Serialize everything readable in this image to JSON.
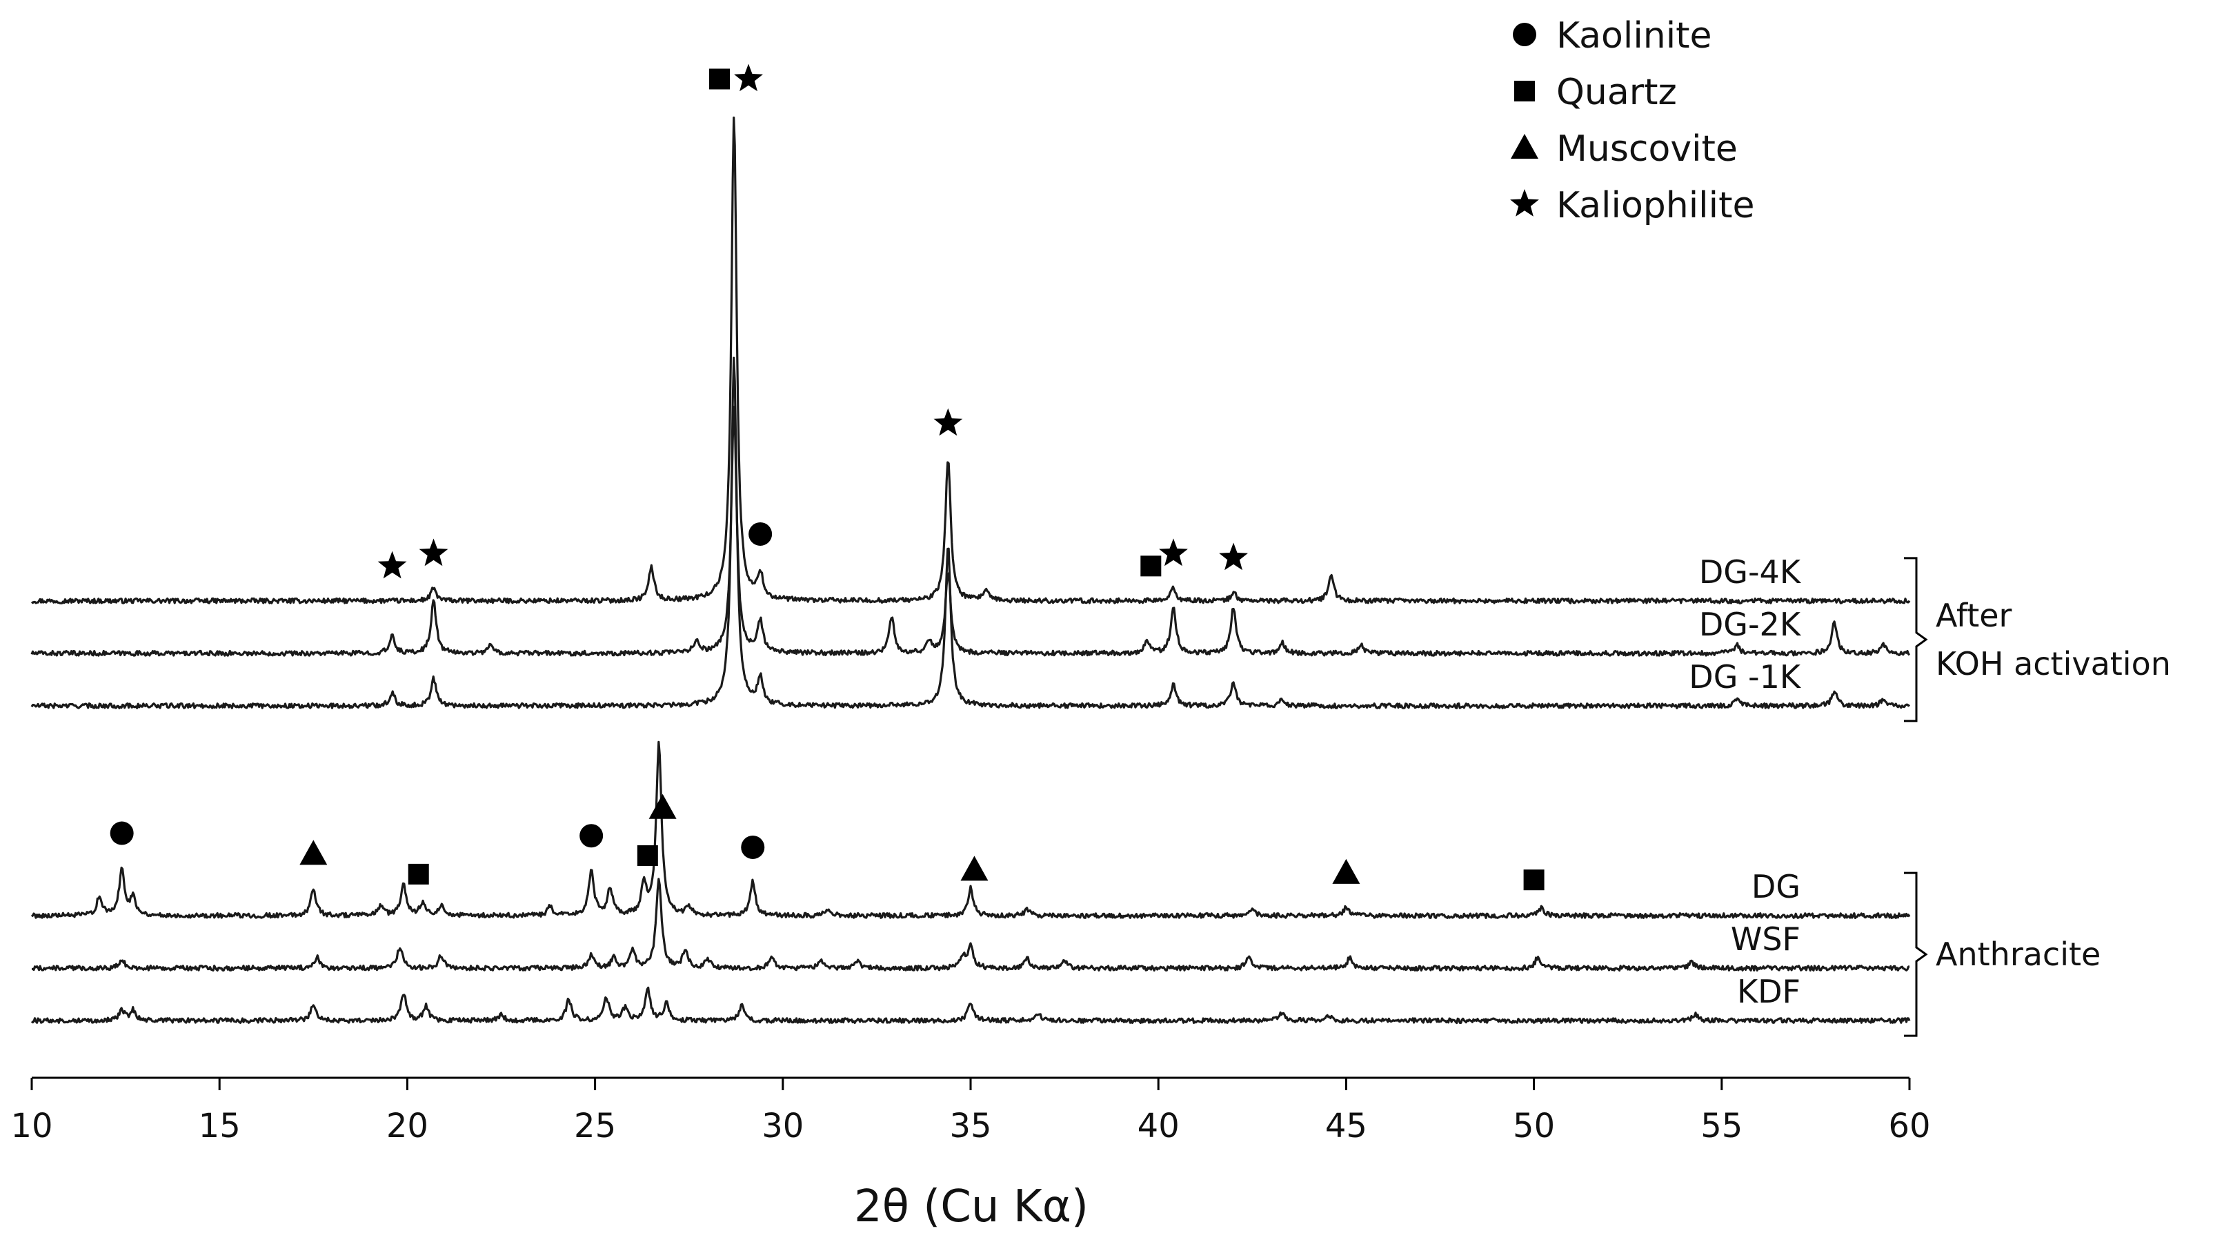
{
  "chart_data": {
    "type": "line",
    "title": "",
    "xlabel": "2θ (Cu Kα)",
    "ylabel": "",
    "xlim": [
      10,
      60
    ],
    "x_ticks": [
      10,
      15,
      20,
      25,
      30,
      35,
      40,
      45,
      50,
      55,
      60
    ],
    "y_ticks_shown": false,
    "legend": {
      "placement": "top-right",
      "entries": [
        {
          "symbol": "circle",
          "label": "Kaolinite"
        },
        {
          "symbol": "square",
          "label": "Quartz"
        },
        {
          "symbol": "triangle",
          "label": "Muscovite"
        },
        {
          "symbol": "star",
          "label": "Kaliophilite"
        }
      ]
    },
    "groups": [
      {
        "label_lines": [
          "After",
          "KOH activation"
        ],
        "series": [
          "DG-4K",
          "DG-2K",
          "DG -1K"
        ]
      },
      {
        "label_lines": [
          "Anthracite"
        ],
        "series": [
          "DG",
          "WSF",
          "KDF"
        ]
      }
    ],
    "series": [
      {
        "name": "DG-4K",
        "baseline": 10,
        "peaks": [
          [
            20.7,
            0.6
          ],
          [
            26.5,
            1.6
          ],
          [
            28.7,
            23.2
          ],
          [
            29.4,
            1.2
          ],
          [
            34.4,
            6.8
          ],
          [
            35.4,
            0.5
          ],
          [
            40.4,
            0.6
          ],
          [
            42.0,
            0.4
          ],
          [
            44.6,
            1.2
          ]
        ]
      },
      {
        "name": "DG-2K",
        "baseline": 7.5,
        "peaks": [
          [
            19.6,
            0.8
          ],
          [
            20.7,
            2.5
          ],
          [
            22.2,
            0.4
          ],
          [
            27.7,
            0.6
          ],
          [
            28.7,
            11.8
          ],
          [
            29.4,
            1.5
          ],
          [
            32.9,
            1.7
          ],
          [
            33.9,
            0.6
          ],
          [
            34.4,
            3.9
          ],
          [
            39.7,
            0.6
          ],
          [
            40.4,
            2.2
          ],
          [
            42.0,
            2.2
          ],
          [
            43.3,
            0.5
          ],
          [
            45.4,
            0.4
          ],
          [
            55.4,
            0.4
          ],
          [
            58.0,
            1.5
          ],
          [
            59.3,
            0.4
          ]
        ]
      },
      {
        "name": "DG -1K",
        "baseline": 5,
        "peaks": [
          [
            19.6,
            0.6
          ],
          [
            20.7,
            1.3
          ],
          [
            28.7,
            16.6
          ],
          [
            29.4,
            1.3
          ],
          [
            34.4,
            7.7
          ],
          [
            40.4,
            1.0
          ],
          [
            42.0,
            1.1
          ],
          [
            43.3,
            0.3
          ],
          [
            55.4,
            0.3
          ],
          [
            58.0,
            0.7
          ],
          [
            59.3,
            0.3
          ]
        ]
      },
      {
        "name": "DG",
        "baseline": -5,
        "peaks": [
          [
            11.8,
            0.9
          ],
          [
            12.4,
            2.2
          ],
          [
            12.7,
            0.9
          ],
          [
            17.5,
            1.3
          ],
          [
            19.3,
            0.5
          ],
          [
            19.9,
            1.5
          ],
          [
            20.4,
            0.6
          ],
          [
            20.9,
            0.5
          ],
          [
            23.8,
            0.4
          ],
          [
            24.9,
            2.1
          ],
          [
            25.4,
            1.3
          ],
          [
            26.3,
            1.4
          ],
          [
            26.7,
            8.2
          ],
          [
            27.5,
            0.4
          ],
          [
            29.2,
            1.6
          ],
          [
            31.2,
            0.3
          ],
          [
            35.0,
            1.3
          ],
          [
            36.5,
            0.3
          ],
          [
            42.5,
            0.3
          ],
          [
            45.0,
            0.4
          ],
          [
            50.2,
            0.4
          ]
        ]
      },
      {
        "name": "WSF",
        "baseline": -7.5,
        "peaks": [
          [
            12.4,
            0.4
          ],
          [
            17.6,
            0.5
          ],
          [
            19.8,
            1.0
          ],
          [
            20.9,
            0.6
          ],
          [
            24.9,
            0.6
          ],
          [
            25.5,
            0.5
          ],
          [
            26.0,
            0.8
          ],
          [
            26.7,
            4.2
          ],
          [
            27.4,
            0.8
          ],
          [
            28.0,
            0.4
          ],
          [
            29.7,
            0.5
          ],
          [
            31.0,
            0.4
          ],
          [
            32.0,
            0.3
          ],
          [
            34.8,
            0.5
          ],
          [
            35.0,
            1.1
          ],
          [
            36.5,
            0.5
          ],
          [
            37.5,
            0.3
          ],
          [
            42.4,
            0.5
          ],
          [
            45.1,
            0.5
          ],
          [
            50.1,
            0.5
          ],
          [
            54.2,
            0.3
          ]
        ]
      },
      {
        "name": "KDF",
        "baseline": -10,
        "peaks": [
          [
            12.4,
            0.5
          ],
          [
            12.7,
            0.5
          ],
          [
            17.5,
            0.8
          ],
          [
            19.9,
            1.3
          ],
          [
            20.5,
            0.7
          ],
          [
            22.5,
            0.3
          ],
          [
            24.3,
            1.0
          ],
          [
            25.3,
            1.1
          ],
          [
            25.8,
            0.6
          ],
          [
            26.4,
            1.5
          ],
          [
            26.9,
            0.8
          ],
          [
            28.9,
            0.7
          ],
          [
            35.0,
            0.9
          ],
          [
            36.8,
            0.3
          ],
          [
            43.3,
            0.4
          ],
          [
            44.5,
            0.3
          ],
          [
            54.3,
            0.3
          ]
        ]
      }
    ],
    "peak_markers": [
      {
        "symbol": "square",
        "x": 28.7,
        "series": "DG-4K"
      },
      {
        "symbol": "star",
        "x": 28.7,
        "series": "DG-4K"
      },
      {
        "symbol": "star",
        "x": 19.6,
        "series": "DG-4K"
      },
      {
        "symbol": "star",
        "x": 20.7,
        "series": "DG-4K"
      },
      {
        "symbol": "circle",
        "x": 29.4,
        "series": "DG-4K"
      },
      {
        "symbol": "star",
        "x": 34.4,
        "series": "DG-4K"
      },
      {
        "symbol": "square",
        "x": 39.8,
        "series": "DG-4K"
      },
      {
        "symbol": "star",
        "x": 40.4,
        "series": "DG-4K"
      },
      {
        "symbol": "star",
        "x": 42.0,
        "series": "DG-4K"
      },
      {
        "symbol": "circle",
        "x": 12.4,
        "series": "DG"
      },
      {
        "symbol": "triangle",
        "x": 17.5,
        "series": "DG"
      },
      {
        "symbol": "square",
        "x": 20.3,
        "series": "DG"
      },
      {
        "symbol": "circle",
        "x": 24.9,
        "series": "DG"
      },
      {
        "symbol": "square",
        "x": 26.4,
        "series": "DG"
      },
      {
        "symbol": "triangle",
        "x": 26.8,
        "series": "DG"
      },
      {
        "symbol": "circle",
        "x": 29.2,
        "series": "DG"
      },
      {
        "symbol": "triangle",
        "x": 35.1,
        "series": "DG"
      },
      {
        "symbol": "triangle",
        "x": 45.0,
        "series": "DG"
      },
      {
        "symbol": "square",
        "x": 50.0,
        "series": "DG"
      }
    ]
  }
}
